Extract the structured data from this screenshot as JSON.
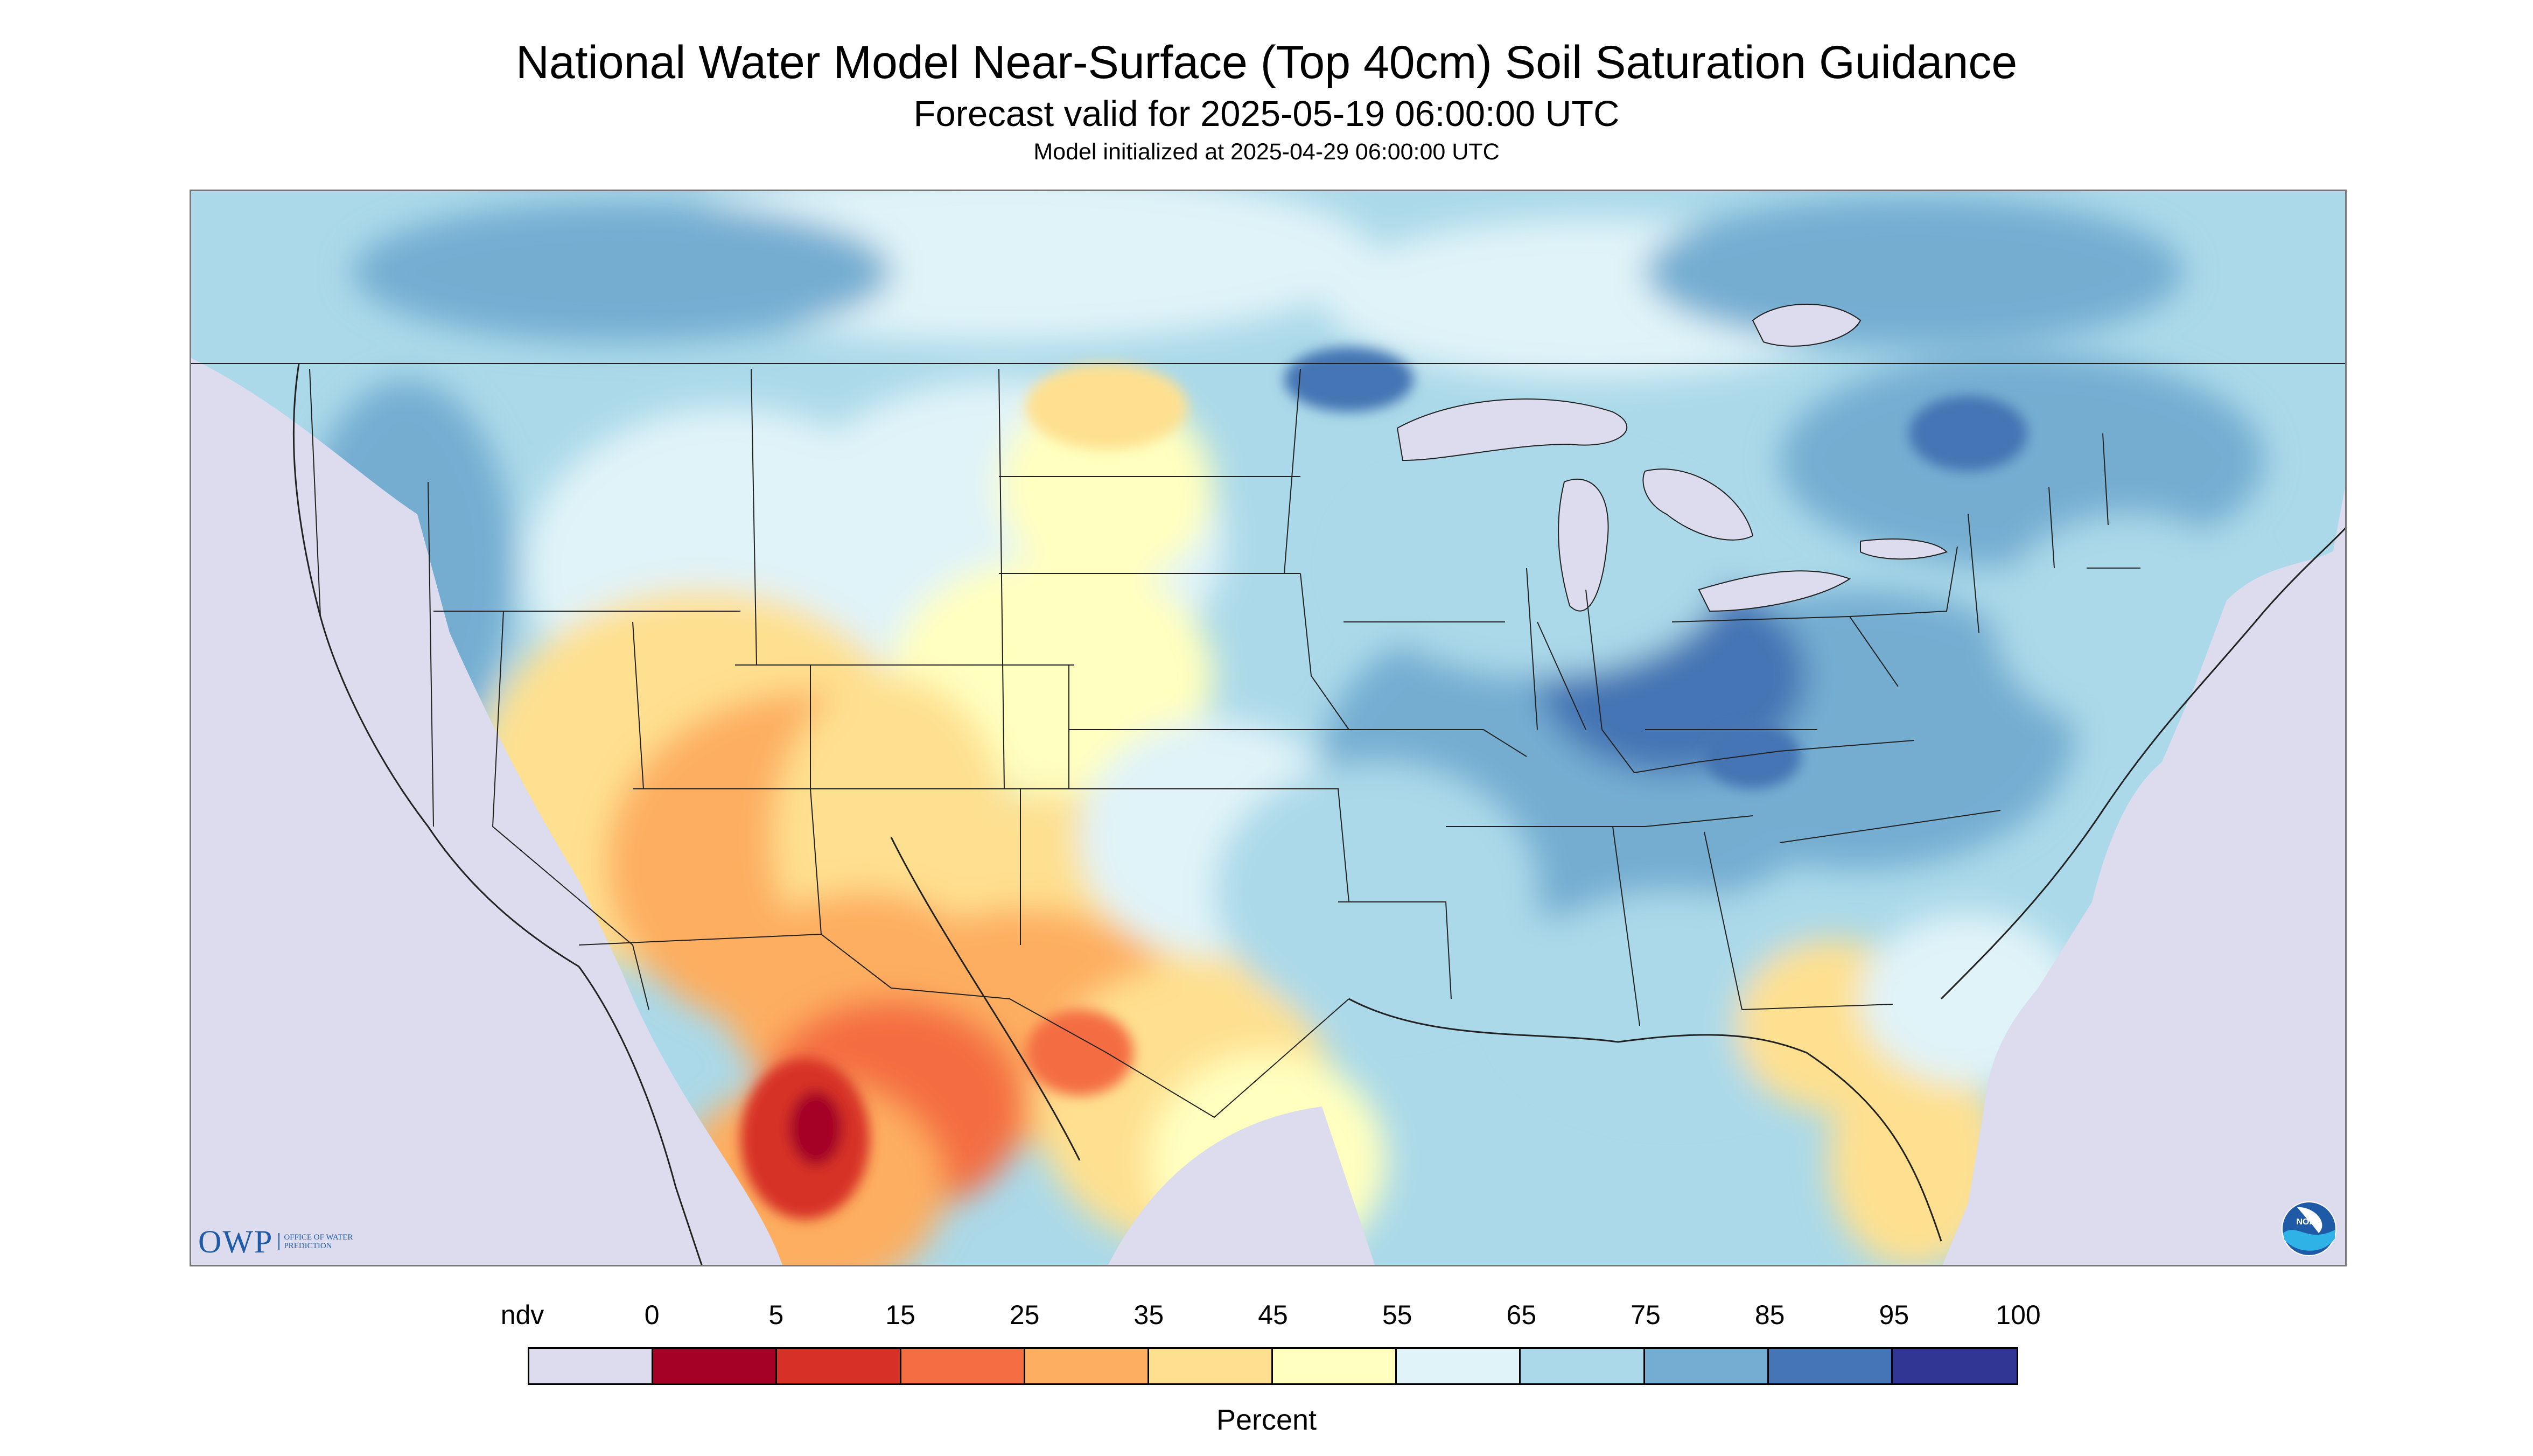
{
  "title": "National Water Model Near-Surface (Top 40cm) Soil Saturation Guidance",
  "subtitle": "Forecast valid for 2025-05-19 06:00:00 UTC",
  "init_line": "Model initialized at 2025-04-29 06:00:00 UTC",
  "logos": {
    "owp_text": "OWP",
    "owp_subtext": "OFFICE OF WATER PREDICTION",
    "noaa_text": "NOAA"
  },
  "legend": {
    "title": "Percent",
    "tick_labels": [
      "ndv",
      "0",
      "5",
      "15",
      "25",
      "35",
      "45",
      "55",
      "65",
      "75",
      "85",
      "95",
      "100"
    ],
    "colors": [
      "#dcdcee",
      "#a50026",
      "#d73027",
      "#f46d43",
      "#fdae61",
      "#fee090",
      "#ffffbf",
      "#e0f3f8",
      "#abd9e9",
      "#74add1",
      "#4575b4",
      "#313695"
    ]
  },
  "map": {
    "region": "Continental United States",
    "water_color": "#dcdcee",
    "land_base_color": "#abd9e9",
    "boundary_color": "#222222"
  }
}
